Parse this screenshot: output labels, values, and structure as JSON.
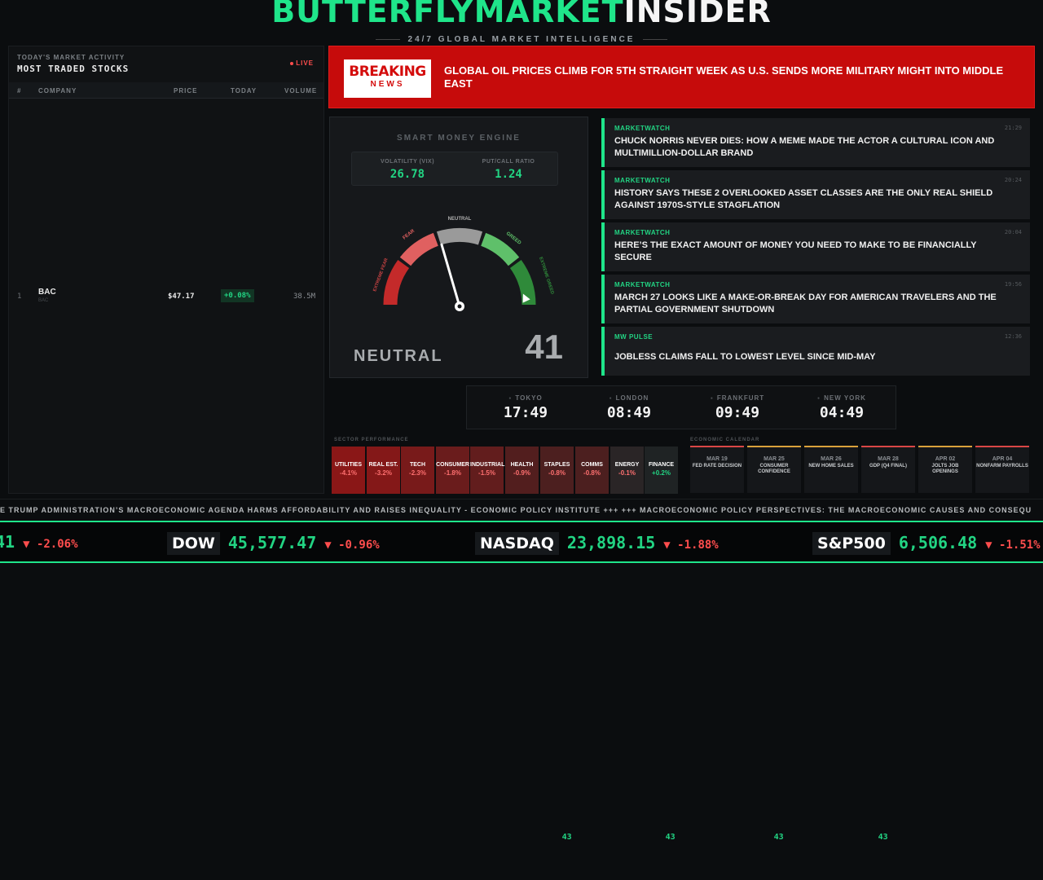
{
  "header": {
    "brand_part1": "BUTTERFLYMARKET",
    "brand_part2": "INSIDER",
    "tagline": "24/7 GLOBAL MARKET INTELLIGENCE"
  },
  "stocks_panel": {
    "subtitle": "TODAY'S MARKET ACTIVITY",
    "title": "MOST TRADED STOCKS",
    "live_label": "LIVE",
    "columns": [
      "#",
      "COMPANY",
      "PRICE",
      "TODAY",
      "VOLUME"
    ],
    "rows": [
      {
        "rank": "1",
        "symbol": "BAC",
        "sub": "BAC",
        "price": "$47.17",
        "change": "+0.08%",
        "volume": "38.5M"
      }
    ]
  },
  "breaking": {
    "badge_line1": "BREAKING",
    "badge_line2": "NEWS",
    "headline": "GLOBAL OIL PRICES CLIMB FOR 5TH STRAIGHT WEEK AS U.S. SENDS MORE MILITARY MIGHT INTO MIDDLE EAST"
  },
  "smart_money": {
    "title": "SMART MONEY ENGINE",
    "vix_label": "VOLATILITY (VIX)",
    "vix_value": "26.78",
    "pc_label": "PUT/CALL RATIO",
    "pc_value": "1.24",
    "gauge_labels": {
      "extreme_fear": "EXTREME FEAR",
      "fear": "FEAR",
      "neutral": "NEUTRAL",
      "greed": "GREED",
      "extreme_greed": "EXTREME GREED"
    },
    "state": "NEUTRAL",
    "score": "41",
    "score_value": 41
  },
  "news": [
    {
      "source": "MARKETWATCH",
      "time": "21:29",
      "headline": "CHUCK NORRIS NEVER DIES: HOW A MEME MADE THE ACTOR A CULTURAL ICON AND MULTIMILLION-DOLLAR BRAND"
    },
    {
      "source": "MARKETWATCH",
      "time": "20:24",
      "headline": "HISTORY SAYS THESE 2 OVERLOOKED ASSET CLASSES ARE THE ONLY REAL SHIELD AGAINST 1970S-STYLE STAGFLATION"
    },
    {
      "source": "MARKETWATCH",
      "time": "20:04",
      "headline": "HERE’S THE EXACT AMOUNT OF MONEY YOU NEED TO MAKE TO BE FINANCIALLY SECURE"
    },
    {
      "source": "MARKETWATCH",
      "time": "19:56",
      "headline": "MARCH 27 LOOKS LIKE A MAKE-OR-BREAK DAY FOR AMERICAN TRAVELERS AND THE PARTIAL GOVERNMENT SHUTDOWN"
    },
    {
      "source": "MW PULSE",
      "time": "12:36",
      "headline": "JOBLESS CLAIMS FALL TO LOWEST LEVEL SINCE MID-MAY"
    }
  ],
  "clocks": [
    {
      "city": "TOKYO",
      "time": "17:49",
      "sec": "43"
    },
    {
      "city": "LONDON",
      "time": "08:49",
      "sec": "43"
    },
    {
      "city": "FRANKFURT",
      "time": "09:49",
      "sec": "43"
    },
    {
      "city": "NEW YORK",
      "time": "04:49",
      "sec": "43"
    }
  ],
  "sector": {
    "label": "SECTOR PERFORMANCE",
    "items": [
      {
        "name": "UTILITIES",
        "pct": "-4.1%",
        "bg": "#8a1717"
      },
      {
        "name": "REAL EST.",
        "pct": "-3.2%",
        "bg": "#841818"
      },
      {
        "name": "TECH",
        "pct": "-2.3%",
        "bg": "#781a1a"
      },
      {
        "name": "CONSUMER",
        "pct": "-1.8%",
        "bg": "#6a1c1c"
      },
      {
        "name": "INDUSTRIAL",
        "pct": "-1.5%",
        "bg": "#621d1d"
      },
      {
        "name": "HEALTH",
        "pct": "-0.9%",
        "bg": "#521e1e"
      },
      {
        "name": "STAPLES",
        "pct": "-0.8%",
        "bg": "#4c1f1f"
      },
      {
        "name": "COMMS",
        "pct": "-0.8%",
        "bg": "#4c1f1f"
      },
      {
        "name": "ENERGY",
        "pct": "-0.1%",
        "bg": "#2a2526"
      },
      {
        "name": "FINANCE",
        "pct": "+0.2%",
        "bg": "#1f2324"
      }
    ]
  },
  "calendar": {
    "label": "ECONOMIC CALENDAR",
    "events": [
      {
        "date": "MAR 19",
        "desc": "FED RATE DECISION",
        "accent": "#d94646"
      },
      {
        "date": "MAR 25",
        "desc": "CONSUMER CONFIDENCE",
        "accent": "#d9a13b"
      },
      {
        "date": "MAR 26",
        "desc": "NEW HOME SALES",
        "accent": "#d9a13b"
      },
      {
        "date": "MAR 28",
        "desc": "GDP (Q4 FINAL)",
        "accent": "#d94646"
      },
      {
        "date": "APR 02",
        "desc": "JOLTS JOB OPENINGS",
        "accent": "#d9a13b"
      },
      {
        "date": "APR 04",
        "desc": "NONFARM PAYROLLS",
        "accent": "#d94646"
      }
    ]
  },
  "ticker": {
    "text": "E TRUMP ADMINISTRATION’S MACROECONOMIC AGENDA HARMS AFFORDABILITY AND RAISES INEQUALITY - ECONOMIC POLICY INSTITUTE +++ +++ MACROECONOMIC POLICY PERSPECTIVES: THE MACROECONOMIC CAUSES AND CONSEQU"
  },
  "indices": [
    {
      "name": "",
      "value": "41",
      "change": "▼ -2.06%"
    },
    {
      "name": "DOW",
      "value": "45,577.47",
      "change": "▼ -0.96%"
    },
    {
      "name": "NASDAQ",
      "value": "23,898.15",
      "change": "▼ -1.88%"
    },
    {
      "name": "S&P500",
      "value": "6,506.48",
      "change": "▼ -1.51%"
    }
  ],
  "colors": {
    "accent": "#1fe58a",
    "negative": "#ff4d4d",
    "breaking_bg": "#c60b0b"
  }
}
